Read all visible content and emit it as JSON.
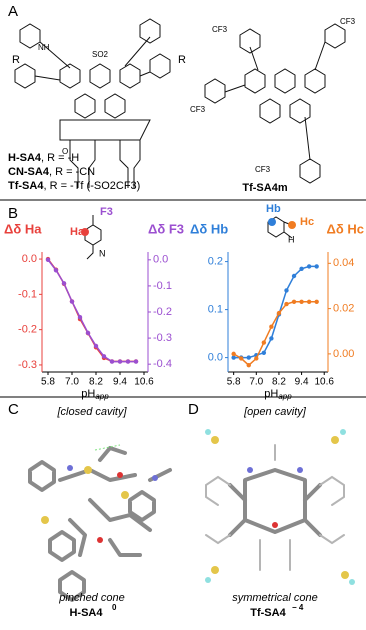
{
  "panel_a": {
    "label": "A",
    "legend": [
      {
        "name": "H-SA4",
        "text": ", R = -H"
      },
      {
        "name": "CN-SA4",
        "text": ", R = -CN"
      },
      {
        "name": "Tf-SA4",
        "text": ", R = -Tf (-SO2CF3)"
      }
    ],
    "right_name": "Tf-SA4m",
    "atoms": [
      "R",
      "NH",
      "SO2",
      "O",
      "CF3"
    ]
  },
  "panel_b": {
    "label": "B",
    "inset_left": [
      "Ha",
      "F3",
      "N"
    ],
    "inset_right": [
      "Hb",
      "Hc",
      "H"
    ]
  },
  "chart_data": [
    {
      "type": "line",
      "x": [
        5.8,
        6.2,
        6.6,
        7.0,
        7.4,
        7.8,
        8.2,
        8.6,
        9.0,
        9.4,
        9.8,
        10.2
      ],
      "xlim": [
        5.5,
        10.8
      ],
      "xticks": [
        5.8,
        {
          "value": 7.0,
          "label": "7.0"
        },
        8.2,
        9.4,
        10.6
      ],
      "xlabel": "pH",
      "xlabel_sub": "app",
      "ylabel": "Δδ Ha",
      "ylim": [
        -0.32,
        0.02
      ],
      "yticks": [
        {
          "value": 0,
          "label": "0.0"
        },
        -0.1,
        -0.2,
        -0.3
      ],
      "y2label": "Δδ F3",
      "y2lim": [
        -0.43,
        0.03
      ],
      "y2ticks": [
        {
          "value": 0,
          "label": "0.0"
        },
        -0.1,
        -0.2,
        -0.3,
        -0.4
      ],
      "series": [
        {
          "name": "Ha",
          "color": "#e8413c",
          "axis": "y",
          "values": [
            0,
            -0.03,
            -0.07,
            -0.12,
            -0.17,
            -0.21,
            -0.25,
            -0.28,
            -0.29,
            -0.29,
            -0.29,
            -0.29
          ]
        },
        {
          "name": "F3",
          "color": "#9b4fd0",
          "axis": "y2",
          "values": [
            0,
            -0.04,
            -0.09,
            -0.16,
            -0.22,
            -0.28,
            -0.33,
            -0.37,
            -0.39,
            -0.39,
            -0.39,
            -0.39
          ]
        }
      ]
    },
    {
      "type": "line",
      "x": [
        5.8,
        6.2,
        6.6,
        7.0,
        7.4,
        7.8,
        8.2,
        8.6,
        9.0,
        9.4,
        9.8,
        10.2
      ],
      "xlim": [
        5.5,
        10.8
      ],
      "xticks": [
        5.8,
        {
          "value": 7.0,
          "label": "7.0"
        },
        8.2,
        9.4,
        10.6
      ],
      "xlabel": "pH",
      "xlabel_sub": "app",
      "ylabel": "Δδ Hb",
      "ylim": [
        -0.03,
        0.22
      ],
      "yticks": [
        {
          "value": 0,
          "label": "0.0"
        },
        0.1,
        0.2
      ],
      "y2label": "Δδ Hc",
      "y2lim": [
        -0.008,
        0.045
      ],
      "y2ticks": [
        {
          "value": 0,
          "label": "0.00"
        },
        {
          "value": 0.02,
          "label": "0.02"
        },
        {
          "value": 0.04,
          "label": "0.04"
        }
      ],
      "series": [
        {
          "name": "Hb",
          "color": "#2f7fd9",
          "axis": "y",
          "values": [
            0,
            0,
            0,
            0.005,
            0.01,
            0.04,
            0.09,
            0.14,
            0.17,
            0.185,
            0.19,
            0.19
          ]
        },
        {
          "name": "Hc",
          "color": "#f07c22",
          "axis": "y2",
          "values": [
            0,
            -0.002,
            -0.005,
            -0.002,
            0.005,
            0.012,
            0.018,
            0.022,
            0.023,
            0.023,
            0.023,
            0.023
          ]
        }
      ]
    }
  ],
  "panel_c": {
    "label": "C",
    "title": "[closed cavity]",
    "caption": "pinched cone",
    "name": "H-SA4",
    "charge": "0"
  },
  "panel_d": {
    "label": "D",
    "title": "[open cavity]",
    "caption": "symmetrical cone",
    "name": "Tf-SA4",
    "charge": "− 4"
  }
}
